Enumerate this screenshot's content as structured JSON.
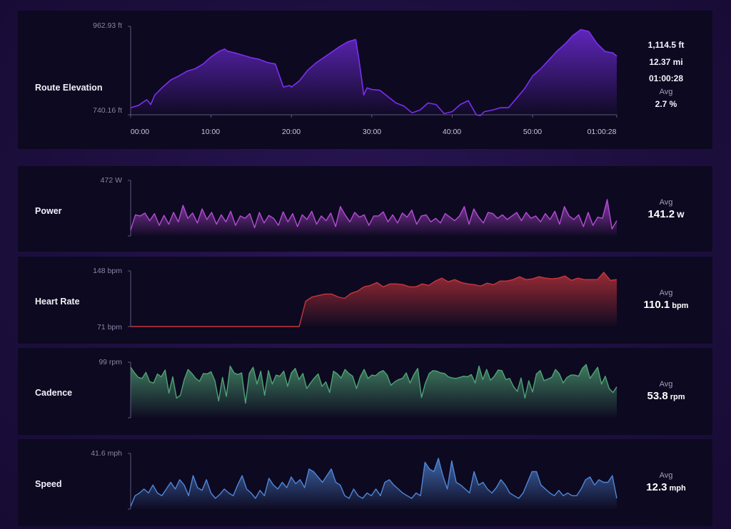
{
  "elevation": {
    "label": "Route Elevation",
    "y_max_label": "962.93 ft",
    "y_min_label": "740.16 ft",
    "x_ticks": [
      "00:00",
      "10:00",
      "20:00",
      "30:00",
      "40:00",
      "50:00",
      "01:00:28"
    ],
    "stats": [
      "1,114.5 ft",
      "12.37 mi",
      "01:00:28"
    ],
    "avg_label": "Avg",
    "avg_value": "2.7 %",
    "color": "#7b2ff0"
  },
  "metrics": [
    {
      "key": "power",
      "label": "Power",
      "y_max_label": "472 W",
      "y_min_label": "",
      "avg_label": "Avg",
      "avg_value": "141.2",
      "avg_unit": "W",
      "color": "#b64ad8"
    },
    {
      "key": "heart",
      "label": "Heart Rate",
      "y_max_label": "148 bpm",
      "y_min_label": "71 bpm",
      "avg_label": "Avg",
      "avg_value": "110.1",
      "avg_unit": "bpm",
      "color": "#c8363c"
    },
    {
      "key": "cadence",
      "label": "Cadence",
      "y_max_label": "99 rpm",
      "y_min_label": "",
      "avg_label": "Avg",
      "avg_value": "53.8",
      "avg_unit": "rpm",
      "color": "#4fa374"
    },
    {
      "key": "speed",
      "label": "Speed",
      "y_max_label": "41.6 mph",
      "y_min_label": "",
      "avg_label": "Avg",
      "avg_value": "12.3",
      "avg_unit": "mph",
      "color": "#4f86d8"
    }
  ],
  "chart_data": [
    {
      "type": "area",
      "title": "Route Elevation",
      "xlabel": "",
      "ylabel": "",
      "x_unit": "minutes",
      "ylim": [
        740.16,
        962.93
      ],
      "xlim": [
        0,
        60.47
      ],
      "series": [
        {
          "x": [
            0,
            1,
            2,
            2.5,
            3,
            4,
            5,
            6,
            7,
            8,
            9,
            10,
            11,
            11.7,
            12,
            13,
            14,
            15,
            16,
            17,
            18,
            19,
            19.8,
            20,
            21,
            22,
            23,
            24,
            25,
            26,
            27,
            28,
            28.4,
            29,
            29.4,
            30,
            31,
            32,
            33,
            34,
            35,
            36,
            37,
            38,
            39,
            40,
            41,
            42,
            43,
            43.5,
            44,
            45,
            46,
            47,
            48,
            49,
            50,
            51,
            52,
            53,
            54,
            55,
            56,
            57,
            58,
            59,
            60,
            60.47
          ],
          "values": [
            758,
            764,
            778,
            766,
            790,
            810,
            828,
            838,
            850,
            856,
            868,
            886,
            900,
            906,
            901,
            896,
            890,
            884,
            880,
            872,
            868,
            810,
            814,
            810,
            826,
            852,
            870,
            884,
            898,
            912,
            924,
            930,
            880,
            790,
            808,
            804,
            802,
            786,
            770,
            762,
            745,
            752,
            770,
            766,
            743,
            748,
            766,
            776,
            740,
            738,
            748,
            752,
            758,
            758,
            782,
            806,
            838,
            856,
            878,
            900,
            918,
            940,
            955,
            950,
            920,
            900,
            896,
            888
          ]
        }
      ]
    },
    {
      "type": "area",
      "title": "Power",
      "xlabel": "",
      "ylabel": "",
      "ylim": [
        0,
        472
      ],
      "series": [
        {
          "values": [
            50,
            180,
            170,
            195,
            130,
            190,
            90,
            175,
            100,
            200,
            120,
            260,
            150,
            195,
            110,
            230,
            140,
            200,
            100,
            180,
            120,
            210,
            90,
            170,
            150,
            190,
            70,
            200,
            110,
            175,
            150,
            90,
            205,
            120,
            190,
            80,
            180,
            140,
            210,
            100,
            170,
            130,
            195,
            80,
            250,
            180,
            120,
            200,
            160,
            180,
            90,
            170,
            170,
            205,
            120,
            180,
            110,
            195,
            160,
            220,
            100,
            170,
            180,
            120,
            150,
            110,
            190,
            160,
            130,
            170,
            250,
            100,
            230,
            160,
            110,
            200,
            190,
            150,
            180,
            140,
            170,
            200,
            130,
            200,
            150,
            170,
            120,
            190,
            140,
            210,
            100,
            250,
            170,
            140,
            180,
            80,
            200,
            90,
            160,
            150,
            310,
            60,
            130
          ]
        }
      ]
    },
    {
      "type": "area",
      "title": "Heart Rate",
      "xlabel": "",
      "ylabel": "",
      "ylim": [
        71,
        148
      ],
      "series": [
        {
          "values": [
            71,
            71,
            71,
            71,
            71,
            71,
            71,
            71,
            71,
            71,
            71,
            71,
            71,
            71,
            71,
            71,
            71,
            71,
            71,
            71,
            71,
            71,
            71,
            71,
            71,
            71,
            71,
            106,
            112,
            114,
            116,
            116,
            112,
            110,
            117,
            120,
            126,
            128,
            132,
            126,
            130,
            130,
            129,
            126,
            126,
            130,
            128,
            134,
            138,
            133,
            136,
            132,
            130,
            129,
            127,
            131,
            129,
            134,
            134,
            136,
            140,
            136,
            137,
            140,
            138,
            137,
            138,
            141,
            135,
            138,
            136,
            136,
            136,
            146,
            135,
            136
          ]
        }
      ]
    },
    {
      "type": "area",
      "title": "Cadence",
      "xlabel": "",
      "ylabel": "",
      "ylim": [
        0,
        99
      ],
      "series": [
        {
          "values": [
            90,
            80,
            72,
            70,
            81,
            64,
            62,
            78,
            73,
            85,
            44,
            73,
            35,
            40,
            68,
            86,
            79,
            70,
            65,
            79,
            78,
            82,
            66,
            30,
            72,
            38,
            92,
            80,
            77,
            80,
            26,
            79,
            90,
            60,
            83,
            40,
            84,
            60,
            76,
            74,
            83,
            56,
            80,
            88,
            68,
            79,
            52,
            62,
            71,
            78,
            56,
            64,
            45,
            83,
            78,
            71,
            86,
            79,
            74,
            52,
            73,
            86,
            70,
            76,
            75,
            81,
            84,
            76,
            58,
            64,
            68,
            70,
            80,
            62,
            77,
            88,
            36,
            62,
            79,
            84,
            83,
            80,
            79,
            73,
            71,
            70,
            72,
            74,
            73,
            77,
            62,
            92,
            68,
            86,
            67,
            74,
            85,
            84,
            68,
            70,
            56,
            47,
            71,
            35,
            66,
            46,
            78,
            84,
            66,
            69,
            72,
            86,
            78,
            62,
            72,
            76,
            76,
            74,
            88,
            95,
            70,
            80,
            90,
            60,
            74,
            52,
            45,
            55
          ]
        }
      ]
    },
    {
      "type": "area",
      "title": "Speed",
      "xlabel": "",
      "ylabel": "",
      "ylim": [
        0,
        41.6
      ],
      "series": [
        {
          "values": [
            2,
            10,
            12,
            15,
            12,
            18,
            12,
            10,
            15,
            20,
            15,
            22,
            18,
            10,
            25,
            16,
            14,
            22,
            12,
            8,
            11,
            15,
            12,
            10,
            18,
            25,
            15,
            12,
            8,
            14,
            10,
            23,
            18,
            15,
            20,
            16,
            24,
            19,
            22,
            16,
            30,
            28,
            24,
            20,
            25,
            30,
            20,
            18,
            10,
            8,
            15,
            10,
            8,
            12,
            10,
            15,
            10,
            20,
            22,
            18,
            15,
            12,
            10,
            8,
            12,
            10,
            35,
            30,
            28,
            38,
            25,
            15,
            36,
            20,
            18,
            15,
            12,
            28,
            18,
            20,
            15,
            12,
            16,
            22,
            18,
            12,
            10,
            8,
            12,
            20,
            28,
            28,
            18,
            15,
            12,
            10,
            14,
            10,
            12,
            10,
            10,
            15,
            22,
            24,
            18,
            22,
            20,
            20,
            25,
            8
          ]
        }
      ]
    }
  ]
}
